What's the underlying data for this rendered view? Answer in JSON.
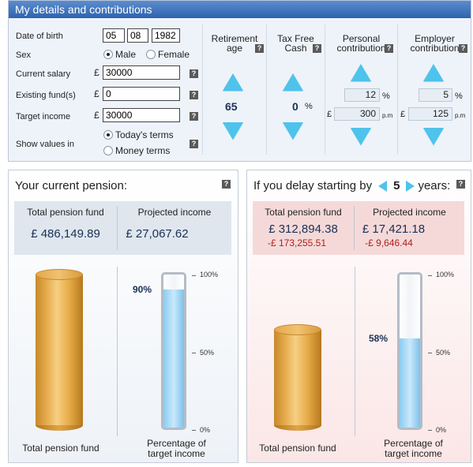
{
  "details": {
    "title": "My details and contributions",
    "labels": {
      "dob": "Date of birth",
      "sex": "Sex",
      "salary": "Current salary",
      "funds": "Existing fund(s)",
      "target": "Target income",
      "show": "Show values in"
    },
    "dob": {
      "day": "05",
      "month": "08",
      "year": "1982"
    },
    "sex_options": [
      "Male",
      "Female"
    ],
    "sex_selected": "Male",
    "currency": "£",
    "salary": "30000",
    "funds": "0",
    "target_income": "30000",
    "show_options": [
      "Today's terms",
      "Money terms"
    ],
    "show_selected": "Today's terms",
    "columns": {
      "retirement": {
        "title_l1": "Retirement",
        "title_l2": "age",
        "value": "65"
      },
      "taxfree": {
        "title_l1": "Tax Free",
        "title_l2": "Cash",
        "value": "0",
        "unit": "%"
      },
      "personal": {
        "title_l1": "Personal",
        "title_l2": "contribution",
        "pct": "12",
        "amount": "300"
      },
      "employer": {
        "title_l1": "Employer",
        "title_l2": "contribution",
        "pct": "5",
        "amount": "125"
      }
    },
    "pct_unit": "%",
    "pm_unit": "p.m"
  },
  "current": {
    "title": "Your current pension:",
    "fund_label": "Total pension fund",
    "income_label": "Projected income",
    "fund_value": "£ 486,149.89",
    "income_value": "£ 27,067.62",
    "percent_label": "90%",
    "percent": 0.9,
    "cyl_caption": "Total pension fund",
    "gauge_caption_l1": "Percentage of",
    "gauge_caption_l2": "target income"
  },
  "delayed": {
    "title_pre": "If you delay starting by",
    "years": "5",
    "title_post": "years:",
    "fund_label": "Total pension fund",
    "income_label": "Projected income",
    "fund_value": "£ 312,894.38",
    "income_value": "£ 17,421.18",
    "fund_diff": "-£ 173,255.51",
    "income_diff": "-£ 9,646.44",
    "percent_label": "58%",
    "percent": 0.58,
    "cyl_caption": "Total pension fund",
    "gauge_caption_l1": "Percentage of",
    "gauge_caption_l2": "target income"
  },
  "ticks": [
    "100%",
    "50%",
    "0%"
  ],
  "help_glyph": "?",
  "colors": {
    "header": "#2e63ad",
    "arrows": "#4ec3ec",
    "value_text": "#1a3055",
    "negative": "#b0201b",
    "gauge_fill": "#8ccbf0",
    "cylinder": "#e7ad4f"
  }
}
